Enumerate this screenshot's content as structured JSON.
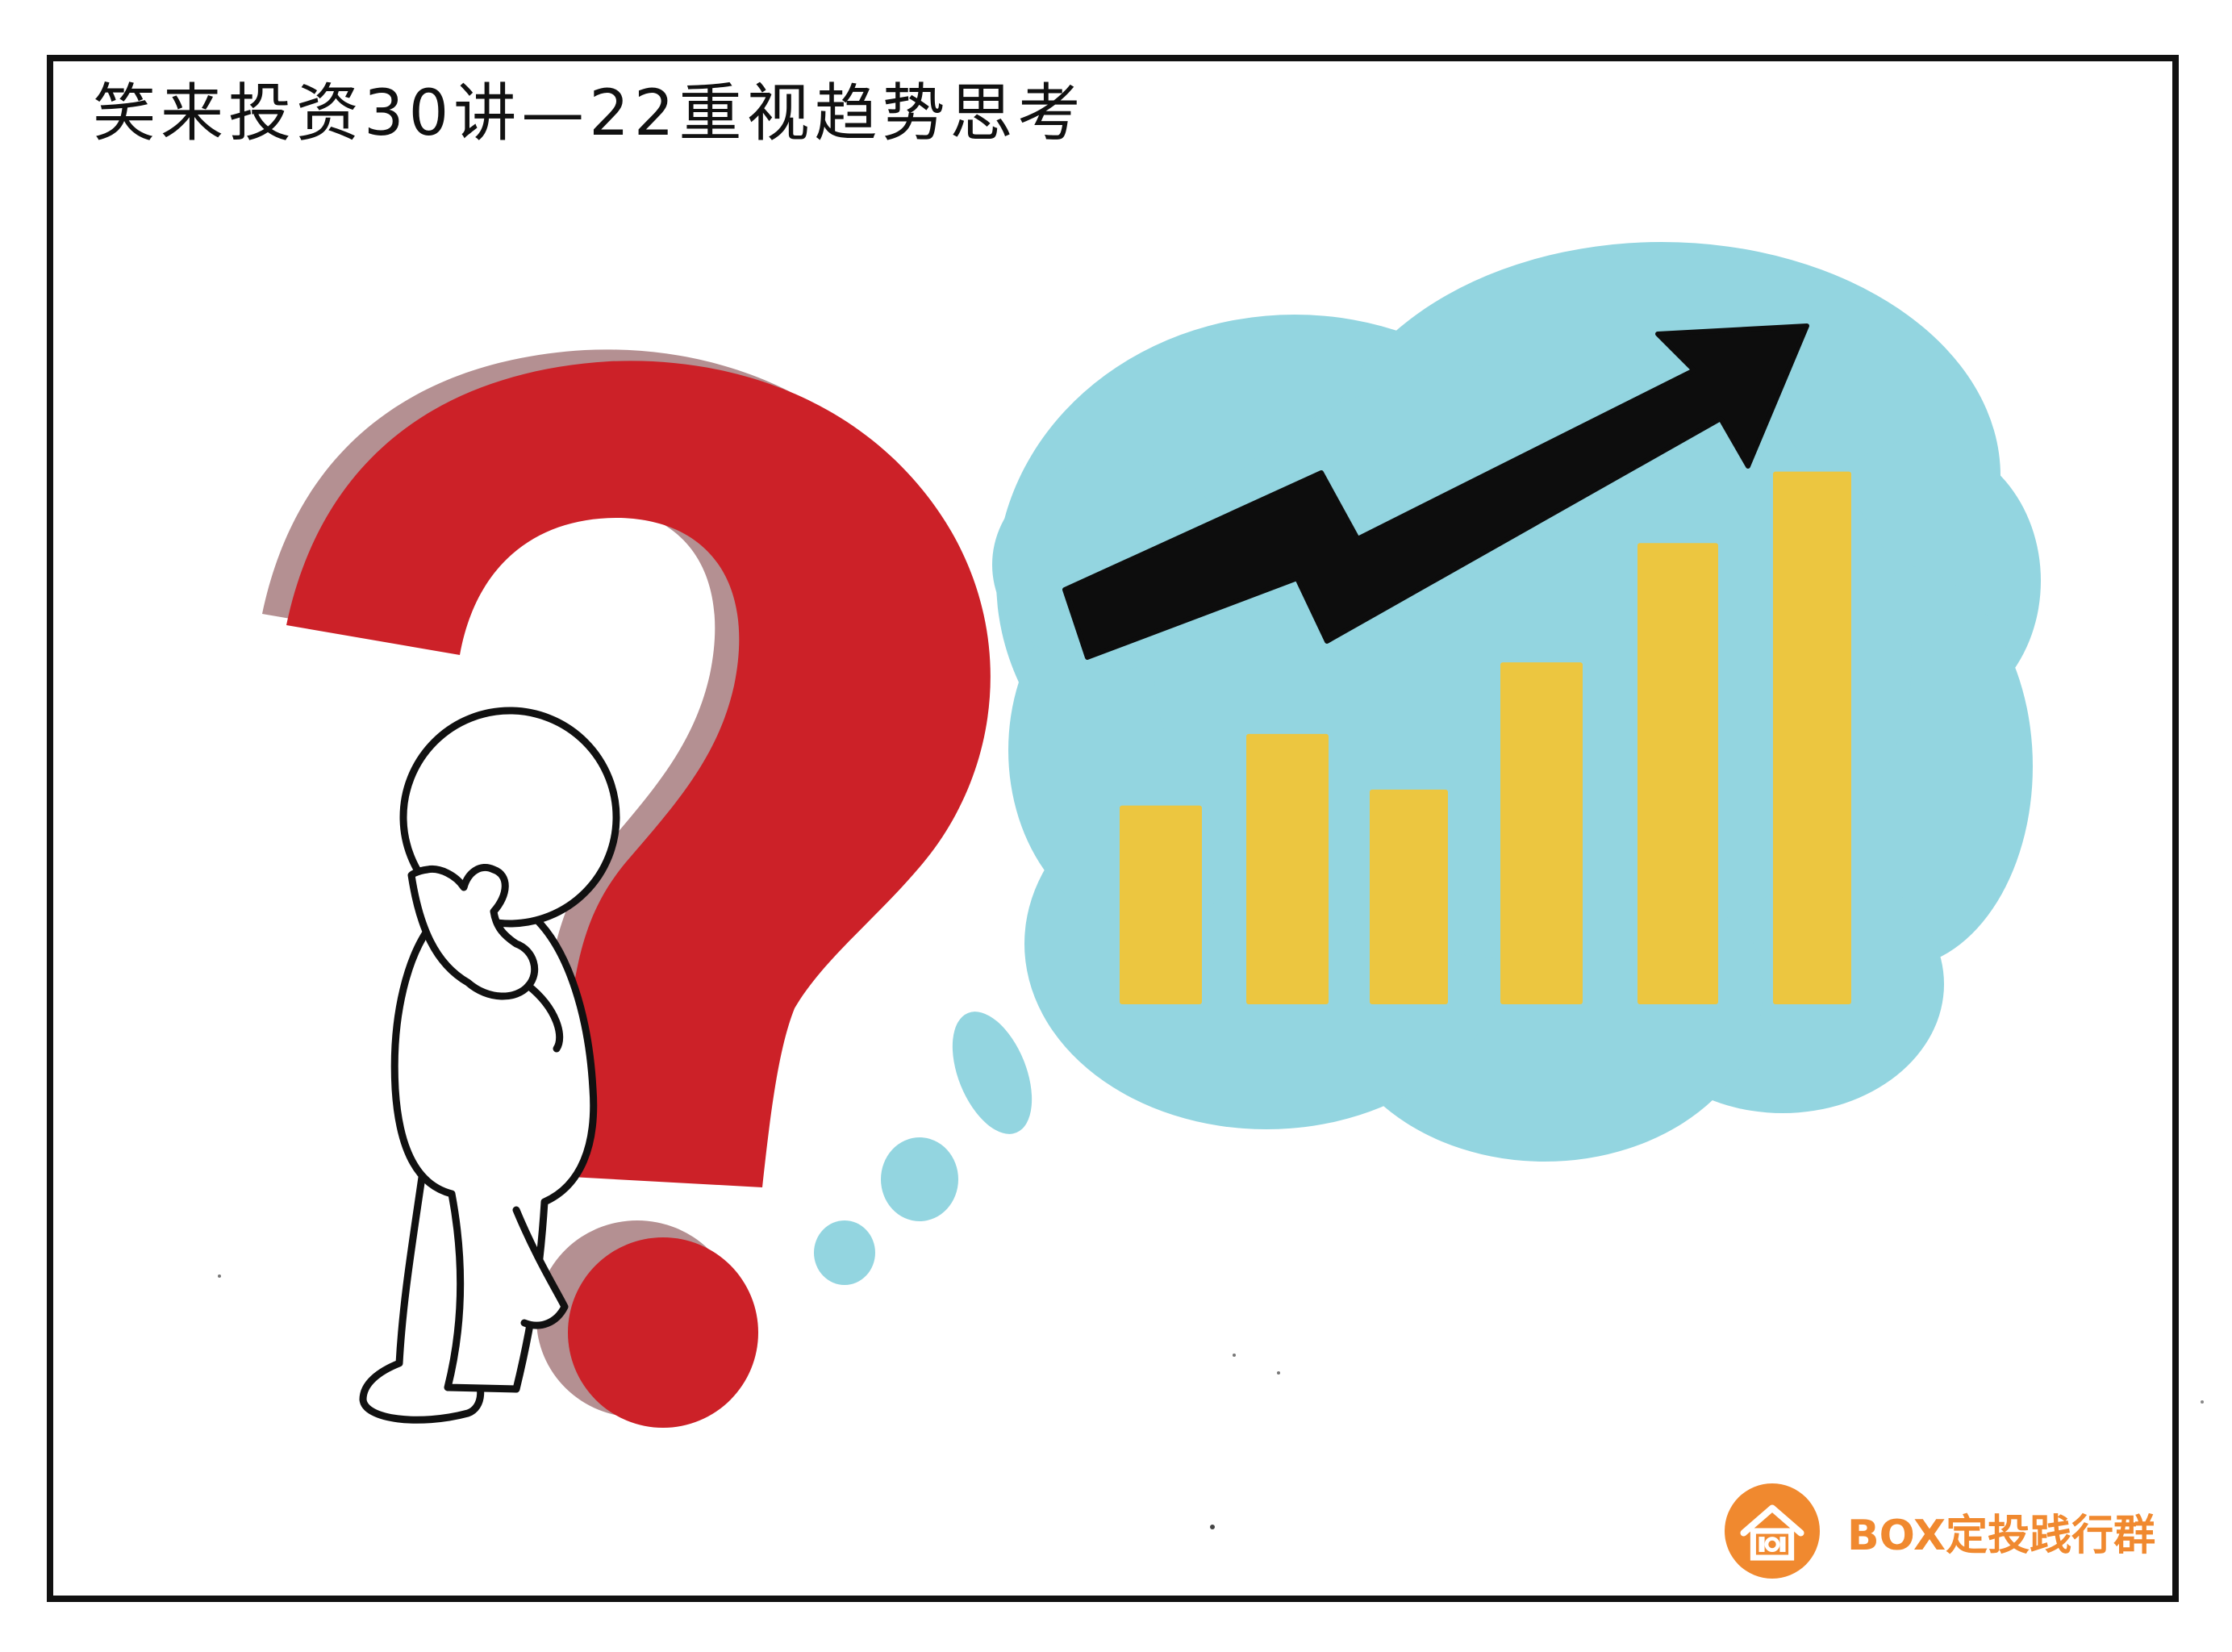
{
  "title": "笑来投资30讲—22重视趋势思考",
  "brand": {
    "text": "BOX定投践行群",
    "logo_icon": "house-icon",
    "logo_color": "#f0892f"
  },
  "colors": {
    "frame": "#111111",
    "question_mark": "#cc2128",
    "question_mark_shadow": "#b49092",
    "thought_cloud": "#93d5e0",
    "bars": "#ecc640",
    "arrow": "#0d0d0d",
    "figure_fill": "#ffffff",
    "figure_outline": "#111111"
  },
  "icons": [
    "question-mark-icon",
    "thinking-person-icon",
    "thought-cloud-icon",
    "trend-up-arrow-icon",
    "house-icon"
  ],
  "chart_data": {
    "type": "bar",
    "categories": [
      "",
      "",
      "",
      "",
      "",
      ""
    ],
    "values": [
      2.5,
      3.4,
      2.7,
      4.3,
      5.8,
      6.7
    ],
    "ylim": [
      0,
      7
    ],
    "grid": false,
    "legend": "none",
    "trend_arrow": "up"
  }
}
